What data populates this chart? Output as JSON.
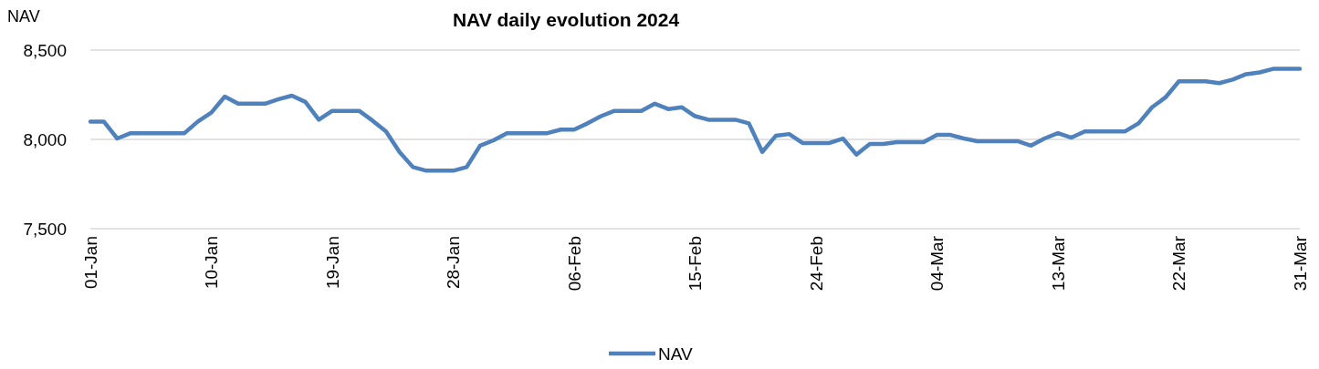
{
  "chart_data": {
    "type": "line",
    "title": "NAV daily evolution 2024",
    "ylabel": "NAV",
    "x": [
      "2024-01-01",
      "2024-01-02",
      "2024-01-03",
      "2024-01-04",
      "2024-01-05",
      "2024-01-06",
      "2024-01-07",
      "2024-01-08",
      "2024-01-09",
      "2024-01-10",
      "2024-01-11",
      "2024-01-12",
      "2024-01-13",
      "2024-01-14",
      "2024-01-15",
      "2024-01-16",
      "2024-01-17",
      "2024-01-18",
      "2024-01-19",
      "2024-01-20",
      "2024-01-21",
      "2024-01-22",
      "2024-01-23",
      "2024-01-24",
      "2024-01-25",
      "2024-01-26",
      "2024-01-27",
      "2024-01-28",
      "2024-01-29",
      "2024-01-30",
      "2024-01-31",
      "2024-02-01",
      "2024-02-02",
      "2024-02-03",
      "2024-02-04",
      "2024-02-05",
      "2024-02-06",
      "2024-02-07",
      "2024-02-08",
      "2024-02-09",
      "2024-02-10",
      "2024-02-11",
      "2024-02-12",
      "2024-02-13",
      "2024-02-14",
      "2024-02-15",
      "2024-02-16",
      "2024-02-17",
      "2024-02-18",
      "2024-02-19",
      "2024-02-20",
      "2024-02-21",
      "2024-02-22",
      "2024-02-23",
      "2024-02-24",
      "2024-02-25",
      "2024-02-26",
      "2024-02-27",
      "2024-02-28",
      "2024-02-29",
      "2024-03-01",
      "2024-03-02",
      "2024-03-03",
      "2024-03-04",
      "2024-03-05",
      "2024-03-06",
      "2024-03-07",
      "2024-03-08",
      "2024-03-09",
      "2024-03-10",
      "2024-03-11",
      "2024-03-12",
      "2024-03-13",
      "2024-03-14",
      "2024-03-15",
      "2024-03-16",
      "2024-03-17",
      "2024-03-18",
      "2024-03-19",
      "2024-03-20",
      "2024-03-21",
      "2024-03-22",
      "2024-03-23",
      "2024-03-24",
      "2024-03-25",
      "2024-03-26",
      "2024-03-27",
      "2024-03-28",
      "2024-03-29",
      "2024-03-30",
      "2024-03-31"
    ],
    "series": [
      {
        "name": "NAV",
        "color": "#4f81bd",
        "values": [
          8100,
          8100,
          8005,
          8035,
          8035,
          8035,
          8035,
          8035,
          8100,
          8150,
          8240,
          8200,
          8200,
          8200,
          8225,
          8245,
          8210,
          8110,
          8160,
          8160,
          8160,
          8105,
          8045,
          7930,
          7845,
          7825,
          7825,
          7825,
          7845,
          7965,
          7995,
          8035,
          8035,
          8035,
          8035,
          8055,
          8055,
          8090,
          8130,
          8160,
          8160,
          8160,
          8200,
          8170,
          8180,
          8130,
          8110,
          8110,
          8110,
          8090,
          7930,
          8020,
          8030,
          7980,
          7980,
          7980,
          8005,
          7915,
          7975,
          7975,
          7985,
          7985,
          7985,
          8025,
          8025,
          8005,
          7990,
          7990,
          7990,
          7990,
          7965,
          8005,
          8035,
          8010,
          8045,
          8045,
          8045,
          8045,
          8090,
          8180,
          8235,
          8325,
          8325,
          8325,
          8315,
          8335,
          8365,
          8375,
          8395,
          8395,
          8395
        ]
      }
    ],
    "xlim": [
      "2024-01-01",
      "2024-03-31"
    ],
    "xticks": [
      {
        "value": "2024-01-01",
        "label": "01-Jan"
      },
      {
        "value": "2024-01-10",
        "label": "10-Jan"
      },
      {
        "value": "2024-01-19",
        "label": "19-Jan"
      },
      {
        "value": "2024-01-28",
        "label": "28-Jan"
      },
      {
        "value": "2024-02-06",
        "label": "06-Feb"
      },
      {
        "value": "2024-02-15",
        "label": "15-Feb"
      },
      {
        "value": "2024-02-24",
        "label": "24-Feb"
      },
      {
        "value": "2024-03-04",
        "label": "04-Mar"
      },
      {
        "value": "2024-03-13",
        "label": "13-Mar"
      },
      {
        "value": "2024-03-22",
        "label": "22-Mar"
      },
      {
        "value": "2024-03-31",
        "label": "31-Mar"
      }
    ],
    "ylim": [
      7500,
      8500
    ],
    "yticks": [
      {
        "value": 7500,
        "label": "7,500"
      },
      {
        "value": 8000,
        "label": "8,000"
      },
      {
        "value": 8500,
        "label": "8,500"
      }
    ],
    "grid": "y",
    "legend": "bottom",
    "marker": "none",
    "line_style": "solid"
  }
}
